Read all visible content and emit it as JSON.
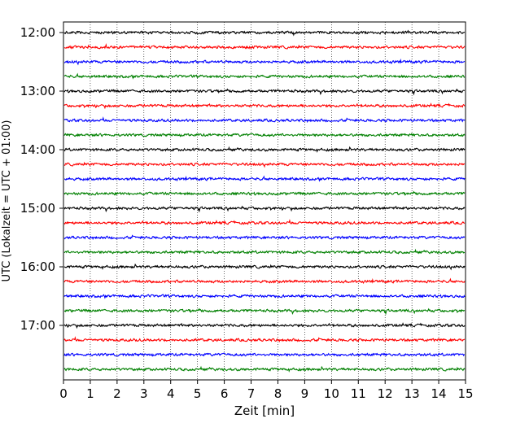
{
  "chart_data": {
    "type": "line",
    "title": "",
    "xlabel": "Zeit  [min]",
    "ylabel": "UTC (Lokalzeit = UTC + 01:00)",
    "xlim": [
      0,
      15
    ],
    "x_ticks": [
      "0",
      "1",
      "2",
      "3",
      "4",
      "5",
      "6",
      "7",
      "8",
      "9",
      "10",
      "11",
      "12",
      "13",
      "14",
      "15"
    ],
    "y_ticks": [
      "12:00",
      "13:00",
      "14:00",
      "15:00",
      "16:00",
      "17:00"
    ],
    "grid": "vertical dotted at each minute",
    "color_cycle": [
      "#000000",
      "#ff0000",
      "#0000ff",
      "#008000"
    ],
    "traces": [
      {
        "start": "12:00",
        "color": "#000000"
      },
      {
        "start": "12:15",
        "color": "#ff0000"
      },
      {
        "start": "12:30",
        "color": "#0000ff"
      },
      {
        "start": "12:45",
        "color": "#008000"
      },
      {
        "start": "13:00",
        "color": "#000000"
      },
      {
        "start": "13:15",
        "color": "#ff0000"
      },
      {
        "start": "13:30",
        "color": "#0000ff"
      },
      {
        "start": "13:45",
        "color": "#008000"
      },
      {
        "start": "14:00",
        "color": "#000000"
      },
      {
        "start": "14:15",
        "color": "#ff0000"
      },
      {
        "start": "14:30",
        "color": "#0000ff"
      },
      {
        "start": "14:45",
        "color": "#008000"
      },
      {
        "start": "15:00",
        "color": "#000000"
      },
      {
        "start": "15:15",
        "color": "#ff0000"
      },
      {
        "start": "15:30",
        "color": "#0000ff"
      },
      {
        "start": "15:45",
        "color": "#008000"
      },
      {
        "start": "16:00",
        "color": "#000000"
      },
      {
        "start": "16:15",
        "color": "#ff0000"
      },
      {
        "start": "16:30",
        "color": "#0000ff"
      },
      {
        "start": "16:45",
        "color": "#008000"
      },
      {
        "start": "17:00",
        "color": "#000000"
      },
      {
        "start": "17:15",
        "color": "#ff0000"
      },
      {
        "start": "17:30",
        "color": "#0000ff"
      },
      {
        "start": "17:45",
        "color": "#008000"
      }
    ]
  }
}
